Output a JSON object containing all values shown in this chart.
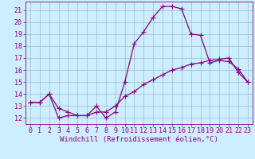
{
  "xlabel": "Windchill (Refroidissement éolien,°C)",
  "ylabel": "",
  "background_color": "#cceeff",
  "line_color": "#880088",
  "grid_color": "#99bbcc",
  "xlim": [
    -0.5,
    23.5
  ],
  "ylim": [
    11.5,
    21.7
  ],
  "xticks": [
    0,
    1,
    2,
    3,
    4,
    5,
    6,
    7,
    8,
    9,
    10,
    11,
    12,
    13,
    14,
    15,
    16,
    17,
    18,
    19,
    20,
    21,
    22,
    23
  ],
  "yticks": [
    12,
    13,
    14,
    15,
    16,
    17,
    18,
    19,
    20,
    21
  ],
  "line1_x": [
    0,
    1,
    2,
    3,
    4,
    5,
    6,
    7,
    8,
    9,
    10,
    11,
    12,
    13,
    14,
    15,
    16,
    17,
    18,
    19,
    20,
    21,
    22,
    23
  ],
  "line1_y": [
    13.3,
    13.3,
    14.0,
    12.0,
    12.2,
    12.2,
    12.2,
    13.0,
    12.0,
    12.5,
    15.0,
    18.2,
    19.2,
    20.4,
    21.3,
    21.3,
    21.1,
    19.0,
    18.9,
    16.6,
    16.8,
    16.7,
    16.1,
    15.0
  ],
  "line2_x": [
    0,
    1,
    2,
    3,
    4,
    5,
    6,
    7,
    8,
    9,
    10,
    11,
    12,
    13,
    14,
    15,
    16,
    17,
    18,
    19,
    20,
    21,
    22,
    23
  ],
  "line2_y": [
    13.3,
    13.3,
    14.0,
    12.8,
    12.5,
    12.2,
    12.2,
    12.5,
    12.5,
    13.0,
    13.8,
    14.2,
    14.8,
    15.2,
    15.6,
    16.0,
    16.2,
    16.5,
    16.6,
    16.8,
    16.9,
    17.0,
    15.8,
    15.0
  ],
  "marker": "+",
  "markersize": 4,
  "linewidth": 0.9,
  "fontsize_tick": 6,
  "fontsize_label": 6.5
}
